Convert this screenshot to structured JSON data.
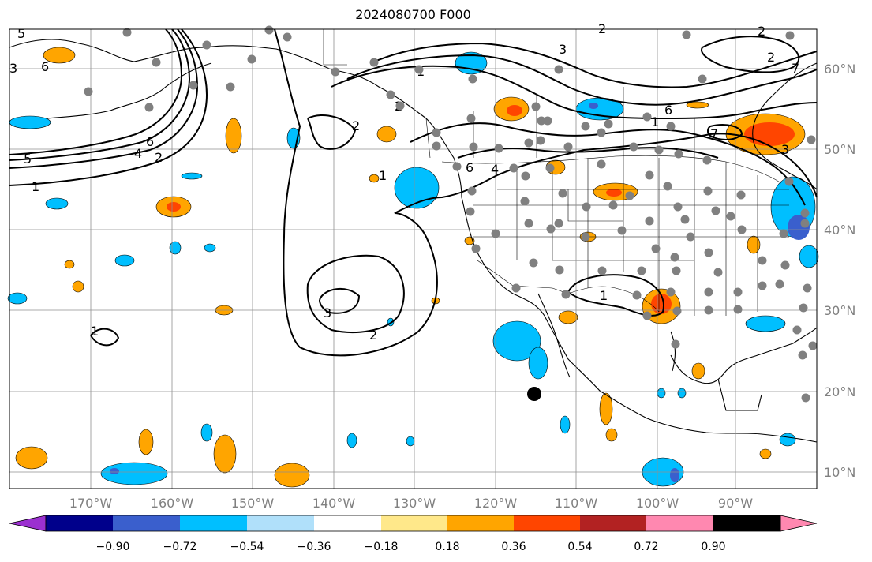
{
  "title": "2024080700 F000",
  "map": {
    "lon_labels": [
      "170°W",
      "160°W",
      "150°W",
      "140°W",
      "130°W",
      "120°W",
      "110°W",
      "100°W",
      "90°W"
    ],
    "lat_labels": [
      "60°N",
      "50°N",
      "40°N",
      "30°N",
      "20°N",
      "10°N"
    ],
    "contour_labels": [
      "5",
      "6",
      "4",
      "6",
      "2",
      "5",
      "1",
      "2",
      "1",
      "2",
      "3",
      "2",
      "1",
      "2",
      "3",
      "2",
      "7",
      "6",
      "4",
      "6",
      "7",
      "1",
      "3",
      "1",
      "2",
      "3",
      "1"
    ],
    "colors": {
      "land_border": "#000000",
      "grid": "#8f8f8f",
      "station_marker": "#808080",
      "center_marker": "#000000",
      "contour": "#000000"
    }
  },
  "colorbar": {
    "ticks": [
      "−0.90",
      "−0.72",
      "−0.54",
      "−0.36",
      "−0.18",
      "0.18",
      "0.36",
      "0.54",
      "0.72",
      "0.90"
    ],
    "colors": [
      "#9b30d0",
      "#00008b",
      "#3a5fcd",
      "#00bfff",
      "#b0e0fa",
      "#ffffff",
      "#ffe88a",
      "#ffa500",
      "#ff4500",
      "#b22222",
      "#ff88b0"
    ]
  }
}
